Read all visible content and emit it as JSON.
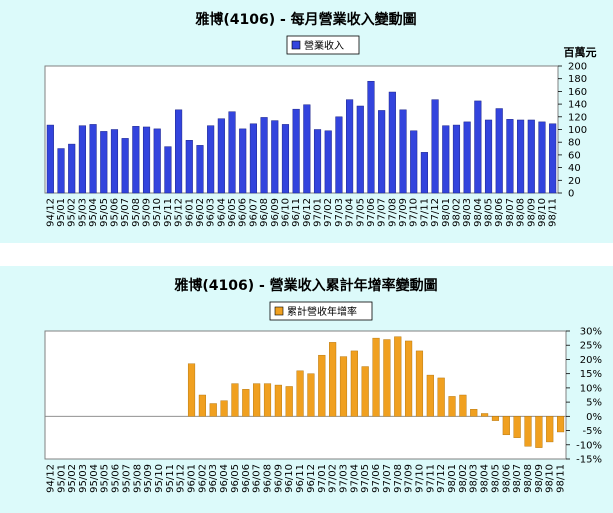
{
  "chart_data": [
    {
      "type": "bar",
      "title": "雅博(4106) - 每月營業收入變動圖",
      "unit_label": "百萬元",
      "legend": "營業收入",
      "color": "#3344dd",
      "ylim": [
        0,
        200
      ],
      "yticks": [
        0,
        20,
        40,
        60,
        80,
        100,
        120,
        140,
        160,
        180,
        200
      ],
      "categories": [
        "94/12",
        "95/01",
        "95/02",
        "95/03",
        "95/04",
        "95/05",
        "95/06",
        "95/07",
        "95/08",
        "95/09",
        "95/10",
        "95/11",
        "95/12",
        "96/01",
        "96/02",
        "96/03",
        "96/04",
        "96/05",
        "96/06",
        "96/07",
        "96/08",
        "96/09",
        "96/10",
        "96/11",
        "96/12",
        "97/01",
        "97/02",
        "97/03",
        "97/04",
        "97/05",
        "97/06",
        "97/07",
        "97/08",
        "97/09",
        "97/10",
        "97/11",
        "97/12",
        "98/01",
        "98/02",
        "98/03",
        "98/04",
        "98/05",
        "98/06",
        "98/07",
        "98/08",
        "98/09",
        "98/10",
        "98/11"
      ],
      "values": [
        107,
        70,
        77,
        106,
        108,
        97,
        100,
        86,
        105,
        104,
        101,
        73,
        131,
        83,
        75,
        106,
        117,
        128,
        101,
        109,
        119,
        114,
        108,
        132,
        139,
        100,
        98,
        120,
        147,
        137,
        176,
        130,
        159,
        131,
        98,
        64,
        147,
        106,
        107,
        112,
        145,
        115,
        133,
        116,
        115,
        115,
        112,
        109
      ]
    },
    {
      "type": "bar",
      "title": "雅博(4106) -  營業收入累計年增率變動圖",
      "legend": "累計營收年增率",
      "color": "#f0a020",
      "ylim": [
        -15,
        30
      ],
      "yticks": [
        "30%",
        "25%",
        "20%",
        "15%",
        "10%",
        "5%",
        "0%",
        "-5%",
        "-10%",
        "-15%"
      ],
      "categories": [
        "94/12",
        "95/01",
        "95/02",
        "95/03",
        "95/04",
        "95/05",
        "95/06",
        "95/07",
        "95/08",
        "95/09",
        "95/10",
        "95/11",
        "95/12",
        "96/01",
        "96/02",
        "96/03",
        "96/04",
        "96/05",
        "96/06",
        "96/07",
        "96/08",
        "96/09",
        "96/10",
        "96/11",
        "96/12",
        "97/01",
        "97/02",
        "97/03",
        "97/04",
        "97/05",
        "97/06",
        "97/07",
        "97/08",
        "97/09",
        "97/10",
        "97/11",
        "97/12",
        "98/01",
        "98/02",
        "98/03",
        "98/04",
        "98/05",
        "98/06",
        "98/07",
        "98/08",
        "98/09",
        "98/10",
        "98/11"
      ],
      "values": [
        0,
        0,
        0,
        0,
        0,
        0,
        0,
        0,
        0,
        0,
        0,
        0,
        0,
        18.5,
        7.5,
        4.5,
        5.5,
        11.5,
        9.5,
        11.5,
        11.5,
        11,
        10.5,
        16,
        15,
        21.5,
        26,
        21,
        23,
        17.5,
        27.5,
        27,
        28,
        26.5,
        23,
        14.5,
        13.5,
        7,
        7.5,
        2.5,
        1,
        -1.5,
        -6.5,
        -7.5,
        -10.5,
        -11,
        -9,
        -5.5
      ]
    }
  ]
}
